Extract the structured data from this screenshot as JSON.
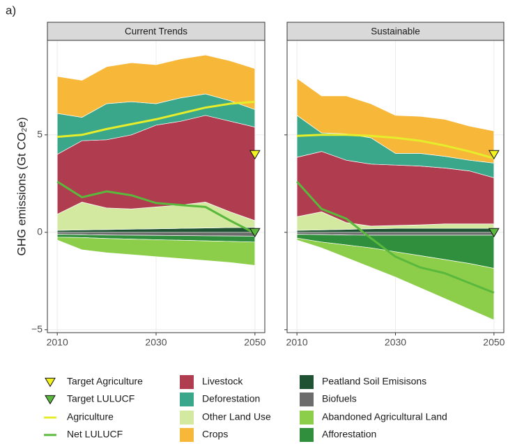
{
  "panel_label": "a)",
  "ylabel": "GHG emissions (Gt CO₂e)",
  "chart_data": [
    {
      "type": "area",
      "title": "Current Trends",
      "x": [
        2010,
        2015,
        2020,
        2025,
        2030,
        2035,
        2040,
        2045,
        2050
      ],
      "xlim": [
        2008,
        2052
      ],
      "xticks": [
        2010,
        2030,
        2050
      ],
      "ylim": [
        -5.15,
        9.85
      ],
      "yticks": [
        {
          "value": -5,
          "label": "−5"
        },
        0,
        5
      ],
      "grid": true,
      "series": [
        {
          "name": "Peatland Soil Emisisons",
          "color": "#1f5133",
          "values": [
            0.1,
            0.12,
            0.14,
            0.16,
            0.18,
            0.2,
            0.22,
            0.24,
            0.25
          ]
        },
        {
          "name": "Other Land Use",
          "color": "#d3e9a0",
          "values": [
            0.83,
            1.43,
            1.11,
            1.04,
            1.12,
            1.2,
            1.33,
            0.81,
            0.35
          ]
        },
        {
          "name": "Livestock",
          "color": "#b03c4f",
          "values": [
            3.07,
            3.15,
            3.5,
            3.8,
            4.2,
            4.3,
            4.45,
            4.65,
            4.8
          ]
        },
        {
          "name": "Deforestation",
          "color": "#3aa68a",
          "values": [
            2.1,
            1.2,
            1.85,
            1.7,
            1.1,
            1.2,
            1.1,
            1.05,
            0.9
          ]
        },
        {
          "name": "Crops",
          "color": "#f7b83a",
          "values": [
            1.9,
            1.9,
            1.9,
            2.0,
            2.0,
            2.0,
            2.0,
            2.05,
            2.1
          ]
        },
        {
          "name": "Biofuels",
          "color": "#6c6c6c",
          "values": [
            -0.1,
            -0.12,
            -0.14,
            -0.15,
            -0.16,
            -0.17,
            -0.18,
            -0.19,
            -0.2
          ]
        },
        {
          "name": "Afforestation",
          "color": "#2f8f3c",
          "values": [
            -0.15,
            -0.15,
            -0.18,
            -0.2,
            -0.22,
            -0.24,
            -0.26,
            -0.28,
            -0.3
          ]
        },
        {
          "name": "Abandoned Agricultural Land",
          "color": "#8cce4a",
          "values": [
            -0.15,
            -0.63,
            -0.73,
            -0.8,
            -0.87,
            -0.94,
            -1.01,
            -1.08,
            -1.2
          ]
        }
      ],
      "lines": [
        {
          "name": "Agriculture",
          "color": "#e6ee2c",
          "values": [
            4.9,
            5.0,
            5.3,
            5.55,
            5.8,
            6.1,
            6.4,
            6.6,
            6.7
          ]
        },
        {
          "name": "Net LULUCF",
          "color": "#5ab83c",
          "values": [
            2.6,
            1.8,
            2.1,
            1.9,
            1.5,
            1.4,
            1.3,
            0.6,
            -0.05
          ]
        }
      ],
      "markers": [
        {
          "name": "Target Agriculture",
          "color": "#f2f21e",
          "x": 2050,
          "value": 4.0
        },
        {
          "name": "Target LULUCF",
          "color": "#5ab83c",
          "x": 2050,
          "value": 0
        }
      ]
    },
    {
      "type": "area",
      "title": "Sustainable",
      "x": [
        2010,
        2015,
        2020,
        2025,
        2030,
        2035,
        2040,
        2045,
        2050
      ],
      "xlim": [
        2008,
        2052
      ],
      "xticks": [
        2010,
        2030,
        2050
      ],
      "ylim": [
        -5.15,
        9.85
      ],
      "yticks": [
        {
          "value": -5,
          "label": "−5"
        },
        0,
        5
      ],
      "grid": true,
      "series": [
        {
          "name": "Peatland Soil Emisisons",
          "color": "#1f5133",
          "values": [
            0.1,
            0.12,
            0.15,
            0.18,
            0.2,
            0.2,
            0.2,
            0.2,
            0.2
          ]
        },
        {
          "name": "Other Land Use",
          "color": "#d3e9a0",
          "values": [
            0.7,
            0.93,
            0.35,
            0.14,
            0.15,
            0.18,
            0.23,
            0.23,
            0.23
          ]
        },
        {
          "name": "Livestock",
          "color": "#b03c4f",
          "values": [
            3.05,
            3.1,
            3.2,
            3.18,
            3.1,
            3.02,
            2.87,
            2.72,
            2.37
          ]
        },
        {
          "name": "Deforestation",
          "color": "#3aa68a",
          "values": [
            2.15,
            0.95,
            1.35,
            1.35,
            0.6,
            0.65,
            0.6,
            0.55,
            0.75
          ]
        },
        {
          "name": "Crops",
          "color": "#f7b83a",
          "values": [
            1.9,
            1.9,
            1.95,
            1.75,
            1.95,
            1.9,
            1.9,
            1.75,
            1.65
          ]
        },
        {
          "name": "Biofuels",
          "color": "#6c6c6c",
          "values": [
            -0.1,
            -0.12,
            -0.14,
            -0.15,
            -0.15,
            -0.15,
            -0.15,
            -0.15,
            -0.15
          ]
        },
        {
          "name": "Afforestation",
          "color": "#2f8f3c",
          "values": [
            -0.2,
            -0.38,
            -0.51,
            -0.65,
            -0.85,
            -1.05,
            -1.25,
            -1.45,
            -1.7
          ]
        },
        {
          "name": "Abandoned Agricultural Land",
          "color": "#8cce4a",
          "values": [
            -0.1,
            -0.3,
            -0.65,
            -1.0,
            -1.3,
            -1.65,
            -2.0,
            -2.35,
            -2.65
          ]
        }
      ],
      "lines": [
        {
          "name": "Agriculture",
          "color": "#e6ee2c",
          "values": [
            4.95,
            5.0,
            5.0,
            4.95,
            4.85,
            4.7,
            4.45,
            4.15,
            3.8
          ]
        },
        {
          "name": "Net LULUCF",
          "color": "#5ab83c",
          "values": [
            2.6,
            1.2,
            0.7,
            -0.3,
            -1.25,
            -1.8,
            -2.1,
            -2.6,
            -3.1
          ]
        }
      ],
      "markers": [
        {
          "name": "Target Agriculture",
          "color": "#f2f21e",
          "x": 2050,
          "value": 4.0
        },
        {
          "name": "Target LULUCF",
          "color": "#5ab83c",
          "x": 2050,
          "value": 0
        }
      ]
    }
  ]
}
